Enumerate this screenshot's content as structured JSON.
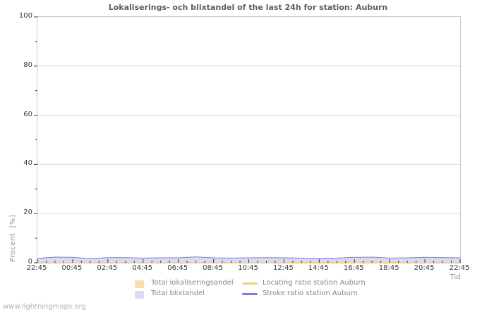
{
  "page": {
    "watermark": "www.lightningmaps.org"
  },
  "chart_data": {
    "type": "area",
    "title": "Lokaliserings- och blixtandel of the last 24h for station: Auburn",
    "xlabel": "Tid",
    "ylabel": "Procent  [%]",
    "ylim": [
      0,
      100
    ],
    "grid": "horizontal-major-only",
    "legend_position": "bottom",
    "x_hours_range": [
      0,
      24
    ],
    "x_major_every_h": 2,
    "x_minor_every_h": 0.5,
    "x_tick_labels": [
      "22:45",
      "00:45",
      "02:45",
      "04:45",
      "06:45",
      "08:45",
      "10:45",
      "12:45",
      "14:45",
      "16:45",
      "18:45",
      "20:45",
      "22:45"
    ],
    "y_major_ticks": [
      0,
      20,
      40,
      60,
      80,
      100
    ],
    "y_minor_ticks": [
      10,
      30,
      50,
      70,
      90
    ],
    "x_hours": [
      0,
      1,
      2,
      3,
      4,
      5,
      6,
      7,
      8,
      9,
      10,
      11,
      12,
      13,
      14,
      15,
      16,
      17,
      18,
      19,
      20,
      21,
      22,
      23,
      24
    ],
    "x_times": [
      "22:45",
      "23:45",
      "00:45",
      "01:45",
      "02:45",
      "03:45",
      "04:45",
      "05:45",
      "06:45",
      "07:45",
      "08:45",
      "09:45",
      "10:45",
      "11:45",
      "12:45",
      "13:45",
      "14:45",
      "15:45",
      "16:45",
      "17:45",
      "18:45",
      "19:45",
      "20:45",
      "21:45",
      "22:45"
    ],
    "series": [
      {
        "name": "Total blixtandel",
        "type": "area",
        "color": "#dadaf8",
        "values": [
          1.8,
          2.3,
          2.2,
          1.7,
          2.1,
          2.1,
          1.9,
          2.0,
          2.0,
          2.4,
          2.0,
          1.9,
          2.0,
          2.1,
          2.0,
          1.9,
          1.8,
          1.9,
          2.2,
          2.3,
          1.9,
          2.0,
          2.2,
          2.1,
          2.0
        ]
      },
      {
        "name": "Total lokaliseringsandel",
        "type": "area",
        "color": "#fadfad",
        "values": [
          0,
          0,
          0,
          0,
          0,
          0,
          0,
          0,
          0,
          0,
          0,
          0,
          0,
          0,
          0,
          0.2,
          0.3,
          0.3,
          0.3,
          0.3,
          0.3,
          0,
          0,
          0,
          0
        ]
      },
      {
        "name": "Locating ratio station Auburn",
        "type": "line",
        "color": "#f2cf7e",
        "width": 1,
        "values": [
          0,
          0,
          0,
          0,
          0,
          0,
          0,
          0,
          0,
          0,
          0,
          0,
          0,
          0,
          0,
          0.2,
          0.3,
          0.3,
          0.3,
          0.3,
          0.3,
          0,
          0,
          0,
          0
        ]
      },
      {
        "name": "Stroke ratio station Auburn",
        "type": "line",
        "color": "#8080d0",
        "width": 1,
        "values": [
          1.8,
          2.3,
          2.2,
          1.7,
          2.1,
          2.1,
          1.9,
          2.0,
          2.0,
          2.4,
          2.0,
          1.9,
          2.0,
          2.1,
          2.0,
          1.9,
          1.8,
          1.9,
          2.2,
          2.3,
          1.9,
          2.0,
          2.2,
          2.1,
          2.0
        ]
      }
    ],
    "legend": [
      {
        "label": "Total lokaliseringsandel",
        "swatch": "box",
        "color": "#fadfad"
      },
      {
        "label": "Total blixtandel",
        "swatch": "box",
        "color": "#dadaf8"
      },
      {
        "label": "Locating ratio station Auburn",
        "swatch": "line",
        "color": "#f2cf7e"
      },
      {
        "label": "Stroke ratio station Auburn",
        "swatch": "line",
        "color": "#7b7bd9"
      }
    ],
    "colors": {
      "grid": "#dcdcdc",
      "tick": "#333333",
      "border": "#c9c9c9",
      "title_text": "#5e5e5e",
      "axis_text": "#3a3a3a",
      "axis_name_text": "#8f8f8f",
      "legend_text": "#878787",
      "watermark_text": "#b2b2b2"
    }
  }
}
